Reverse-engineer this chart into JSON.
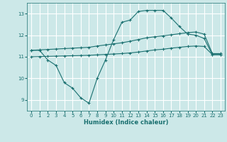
{
  "bg_color": "#cce8e8",
  "grid_color": "#ffffff",
  "line_color": "#1a7070",
  "xlabel": "Humidex (Indice chaleur)",
  "xlim": [
    -0.5,
    23.5
  ],
  "ylim": [
    8.5,
    13.5
  ],
  "yticks": [
    9,
    10,
    11,
    12,
    13
  ],
  "xticks": [
    0,
    1,
    2,
    3,
    4,
    5,
    6,
    7,
    8,
    9,
    10,
    11,
    12,
    13,
    14,
    15,
    16,
    17,
    18,
    19,
    20,
    21,
    22,
    23
  ],
  "line1_x": [
    0,
    1,
    2,
    3,
    4,
    5,
    6,
    7,
    8,
    9,
    10,
    11,
    12,
    13,
    14,
    15,
    16,
    17,
    18,
    19,
    20,
    21,
    22,
    23
  ],
  "line1_y": [
    11.3,
    11.3,
    10.85,
    10.6,
    9.8,
    9.55,
    9.1,
    8.85,
    10.0,
    10.85,
    11.8,
    12.6,
    12.7,
    13.1,
    13.15,
    13.15,
    13.15,
    12.8,
    12.4,
    12.05,
    12.0,
    11.85,
    11.1,
    11.1
  ],
  "line2_x": [
    0,
    1,
    2,
    3,
    4,
    5,
    6,
    7,
    8,
    9,
    10,
    11,
    12,
    13,
    14,
    15,
    16,
    17,
    18,
    19,
    20,
    21,
    22,
    23
  ],
  "line2_y": [
    11.3,
    11.32,
    11.34,
    11.36,
    11.38,
    11.4,
    11.42,
    11.44,
    11.5,
    11.55,
    11.6,
    11.65,
    11.72,
    11.8,
    11.88,
    11.93,
    11.97,
    12.02,
    12.07,
    12.12,
    12.15,
    12.05,
    11.15,
    11.15
  ],
  "line3_x": [
    0,
    1,
    2,
    3,
    4,
    5,
    6,
    7,
    8,
    9,
    10,
    11,
    12,
    13,
    14,
    15,
    16,
    17,
    18,
    19,
    20,
    21,
    22,
    23
  ],
  "line3_y": [
    11.0,
    11.01,
    11.02,
    11.03,
    11.04,
    11.05,
    11.06,
    11.07,
    11.09,
    11.11,
    11.13,
    11.15,
    11.18,
    11.22,
    11.27,
    11.32,
    11.35,
    11.4,
    11.44,
    11.48,
    11.5,
    11.48,
    11.1,
    11.1
  ]
}
